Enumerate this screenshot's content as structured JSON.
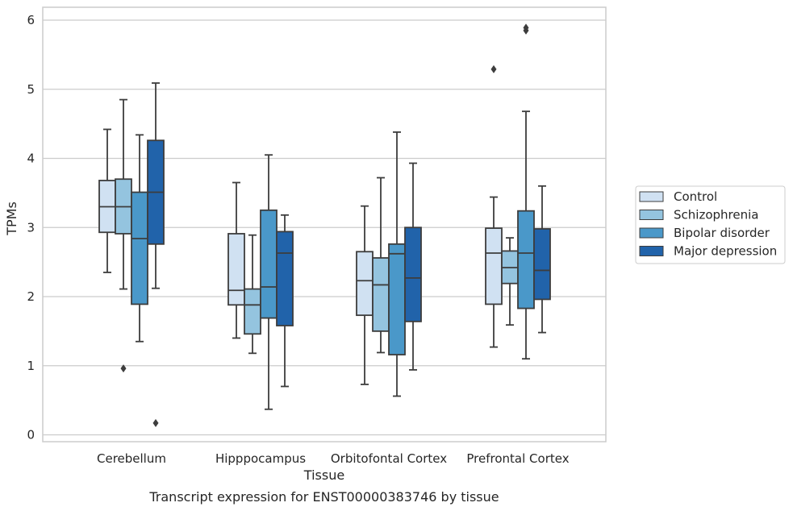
{
  "chart_data": {
    "type": "box",
    "caption": "Transcript expression for ENST00000383746 by tissue",
    "xlabel": "Tissue",
    "ylabel": "TPMs",
    "ylim": [
      -0.1,
      6.2
    ],
    "yticks": [
      0,
      1,
      2,
      3,
      4,
      5,
      6
    ],
    "grid": "horizontal",
    "legend_position": "right",
    "categories": [
      "Cerebellum",
      "Hipppocampus",
      "Orbitofontal Cortex",
      "Prefrontal Cortex"
    ],
    "series": [
      {
        "name": "Control",
        "color": "#d0e1f2",
        "boxes": [
          {
            "whislo": 2.35,
            "q1": 2.93,
            "med": 3.3,
            "q3": 3.68,
            "whishi": 4.42,
            "fliers": []
          },
          {
            "whislo": 1.4,
            "q1": 1.88,
            "med": 2.09,
            "q3": 2.91,
            "whishi": 3.65,
            "fliers": []
          },
          {
            "whislo": 0.73,
            "q1": 1.73,
            "med": 2.23,
            "q3": 2.65,
            "whishi": 3.31,
            "fliers": []
          },
          {
            "whislo": 1.27,
            "q1": 1.89,
            "med": 2.63,
            "q3": 2.99,
            "whishi": 3.44,
            "fliers": [
              5.29
            ]
          }
        ]
      },
      {
        "name": "Schizophrenia",
        "color": "#94c4df",
        "boxes": [
          {
            "whislo": 2.11,
            "q1": 2.91,
            "med": 3.3,
            "q3": 3.7,
            "whishi": 4.85,
            "fliers": [
              0.96
            ]
          },
          {
            "whislo": 1.18,
            "q1": 1.46,
            "med": 1.88,
            "q3": 2.11,
            "whishi": 2.89,
            "fliers": []
          },
          {
            "whislo": 1.19,
            "q1": 1.5,
            "med": 2.17,
            "q3": 2.56,
            "whishi": 3.72,
            "fliers": []
          },
          {
            "whislo": 1.59,
            "q1": 2.19,
            "med": 2.42,
            "q3": 2.66,
            "whishi": 2.85,
            "fliers": []
          }
        ]
      },
      {
        "name": "Bipolar disorder",
        "color": "#4a98c9",
        "boxes": [
          {
            "whislo": 1.35,
            "q1": 1.89,
            "med": 2.84,
            "q3": 3.51,
            "whishi": 4.34,
            "fliers": []
          },
          {
            "whislo": 0.37,
            "q1": 1.69,
            "med": 2.14,
            "q3": 3.25,
            "whishi": 4.05,
            "fliers": []
          },
          {
            "whislo": 0.56,
            "q1": 1.16,
            "med": 2.62,
            "q3": 2.76,
            "whishi": 4.38,
            "fliers": []
          },
          {
            "whislo": 1.1,
            "q1": 1.83,
            "med": 2.63,
            "q3": 3.24,
            "whishi": 4.68,
            "fliers": [
              5.85,
              5.89
            ]
          }
        ]
      },
      {
        "name": "Major depression",
        "color": "#2163aa",
        "boxes": [
          {
            "whislo": 2.12,
            "q1": 2.76,
            "med": 3.51,
            "q3": 4.26,
            "whishi": 5.09,
            "fliers": [
              0.17
            ]
          },
          {
            "whislo": 0.7,
            "q1": 1.58,
            "med": 2.63,
            "q3": 2.94,
            "whishi": 3.18,
            "fliers": []
          },
          {
            "whislo": 0.94,
            "q1": 1.64,
            "med": 2.27,
            "q3": 3.0,
            "whishi": 3.93,
            "fliers": []
          },
          {
            "whislo": 1.48,
            "q1": 1.96,
            "med": 2.38,
            "q3": 2.98,
            "whishi": 3.6,
            "fliers": []
          }
        ]
      }
    ]
  }
}
